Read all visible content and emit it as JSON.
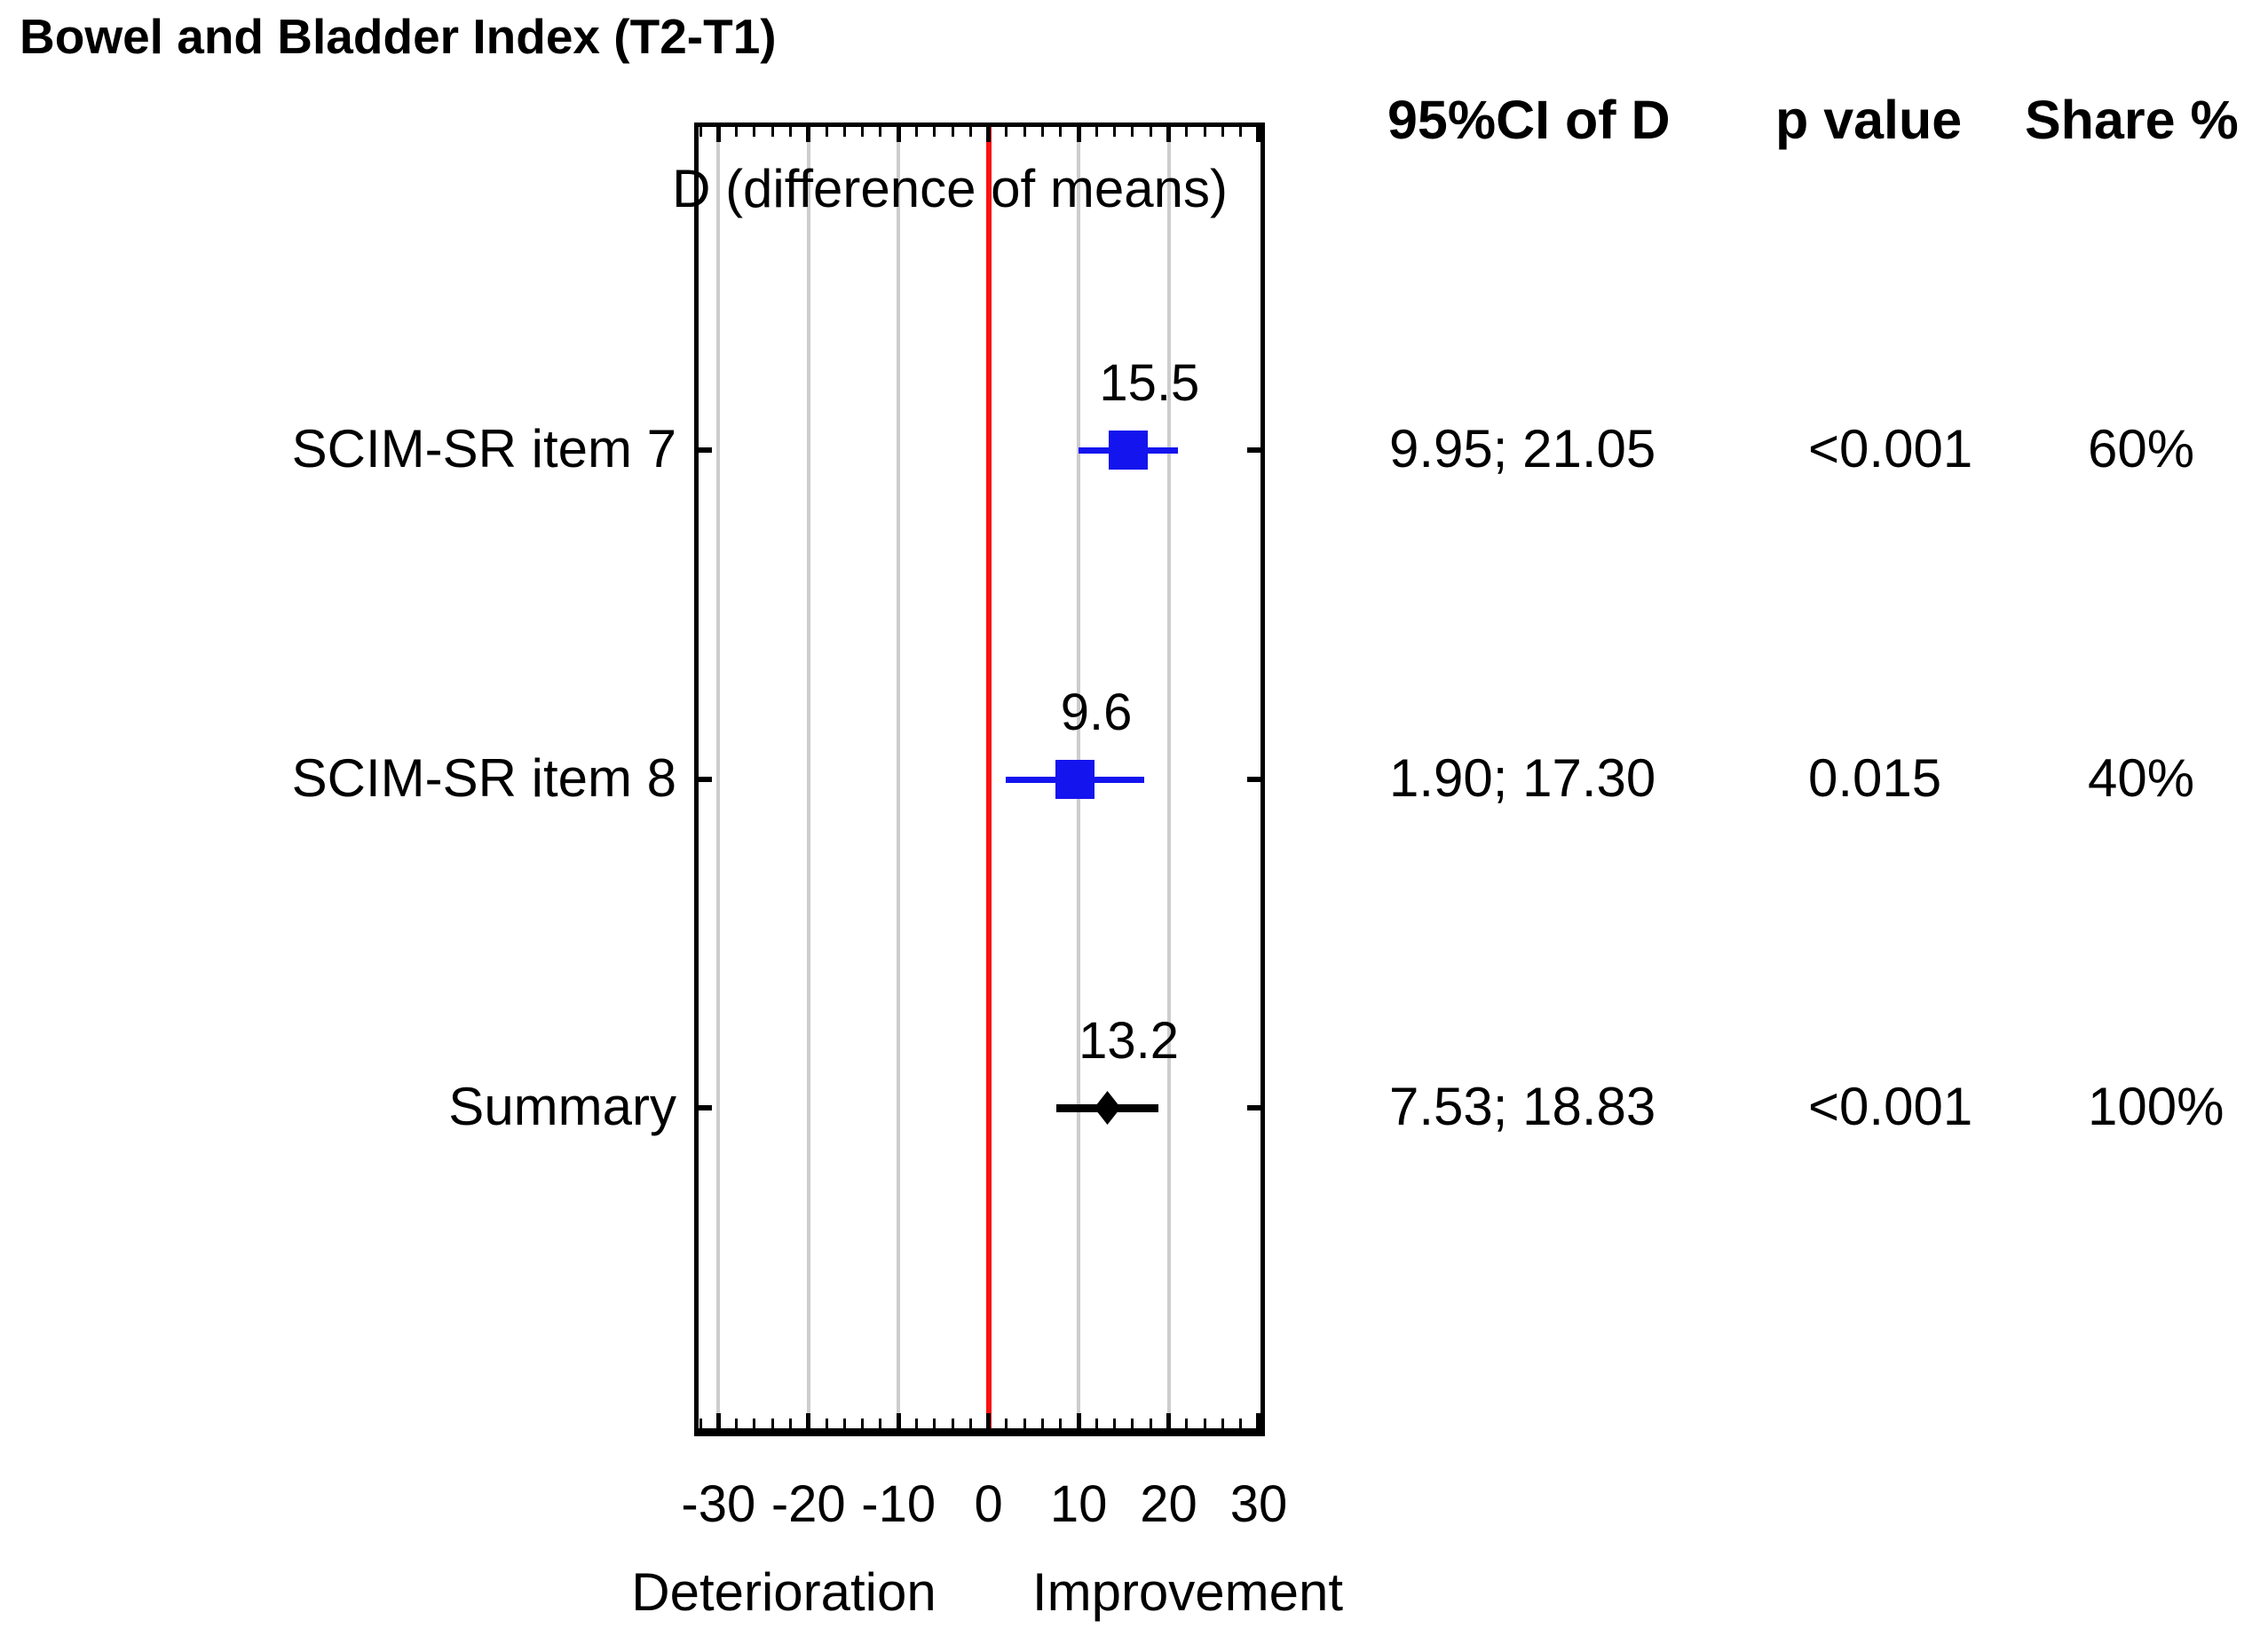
{
  "title": "Bowel and Bladder Index (T2-T1)",
  "colors": {
    "marker_blue": "#1414ee",
    "summary_black": "#000000",
    "zero_line_red": "#fa1111",
    "gridline_gray": "#cdcdcd"
  },
  "chart_data": {
    "type": "forest",
    "title": "Bowel and Bladder Index (T2-T1)",
    "axis_label": "D (difference of means)",
    "x_ticks": [
      -30,
      -20,
      -10,
      0,
      10,
      20,
      30
    ],
    "x_range": [
      -32.2,
      30.2
    ],
    "minor_tick_step": 2,
    "zero_line": 0,
    "grid": true,
    "direction_labels": {
      "negative": "Deterioration",
      "positive": "Improvement"
    },
    "columns": [
      "95%CI of D",
      "p value",
      "Share %"
    ],
    "rows": [
      {
        "label": "SCIM-SR item 7",
        "d": 15.5,
        "d_label": "15.5",
        "ci_low": 9.95,
        "ci_high": 21.05,
        "ci_text": "9.95; 21.05",
        "p_value": "<0.001",
        "share": "60%",
        "marker": "square",
        "color": "blue"
      },
      {
        "label": "SCIM-SR item 8",
        "d": 9.6,
        "d_label": "9.6",
        "ci_low": 1.9,
        "ci_high": 17.3,
        "ci_text": "1.90; 17.30",
        "p_value": "0.015",
        "share": "40%",
        "marker": "square",
        "color": "blue"
      },
      {
        "label": "Summary",
        "d": 13.2,
        "d_label": "13.2",
        "ci_low": 7.53,
        "ci_high": 18.83,
        "ci_text": "7.53; 18.83",
        "p_value": "<0.001",
        "share": "100%",
        "marker": "diamond",
        "color": "black"
      }
    ]
  }
}
